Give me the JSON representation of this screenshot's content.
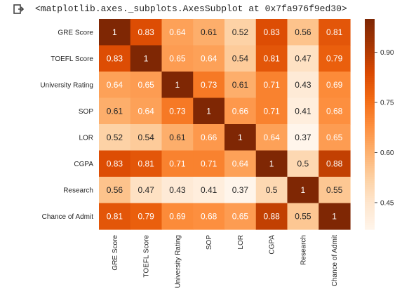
{
  "output": {
    "text": "<matplotlib.axes._subplots.AxesSubplot at 0x7fa976f9ed30>"
  },
  "icons": {
    "output": "output-arrow-icon"
  },
  "chart_data": {
    "type": "heatmap",
    "colormap": "Oranges",
    "colors": {
      "low": "#fff5eb",
      "mid": "#fd8d3c",
      "high": "#7f2704",
      "text_dark": "#262626",
      "text_light": "#ffffff"
    },
    "x_labels": [
      "GRE Score",
      "TOEFL Score",
      "University Rating",
      "SOP",
      "LOR",
      "CGPA",
      "Research",
      "Chance of Admit"
    ],
    "y_labels": [
      "GRE Score",
      "TOEFL Score",
      "University Rating",
      "SOP",
      "LOR",
      "CGPA",
      "Research",
      "Chance of Admit"
    ],
    "values": [
      [
        1,
        0.83,
        0.64,
        0.61,
        0.52,
        0.83,
        0.56,
        0.81
      ],
      [
        0.83,
        1,
        0.65,
        0.64,
        0.54,
        0.81,
        0.47,
        0.79
      ],
      [
        0.64,
        0.65,
        1,
        0.73,
        0.61,
        0.71,
        0.43,
        0.69
      ],
      [
        0.61,
        0.64,
        0.73,
        1,
        0.66,
        0.71,
        0.41,
        0.68
      ],
      [
        0.52,
        0.54,
        0.61,
        0.66,
        1,
        0.64,
        0.37,
        0.65
      ],
      [
        0.83,
        0.81,
        0.71,
        0.71,
        0.64,
        1,
        0.5,
        0.88
      ],
      [
        0.56,
        0.47,
        0.43,
        0.41,
        0.37,
        0.5,
        1,
        0.55
      ],
      [
        0.81,
        0.79,
        0.69,
        0.68,
        0.65,
        0.88,
        0.55,
        1
      ]
    ],
    "vmin": 0.37,
    "vmax": 1,
    "colorbar": {
      "ticks": [
        0.45,
        0.6,
        0.75,
        0.9
      ],
      "tick_labels": [
        "0.45",
        "0.60",
        "0.75",
        "0.90"
      ]
    }
  }
}
